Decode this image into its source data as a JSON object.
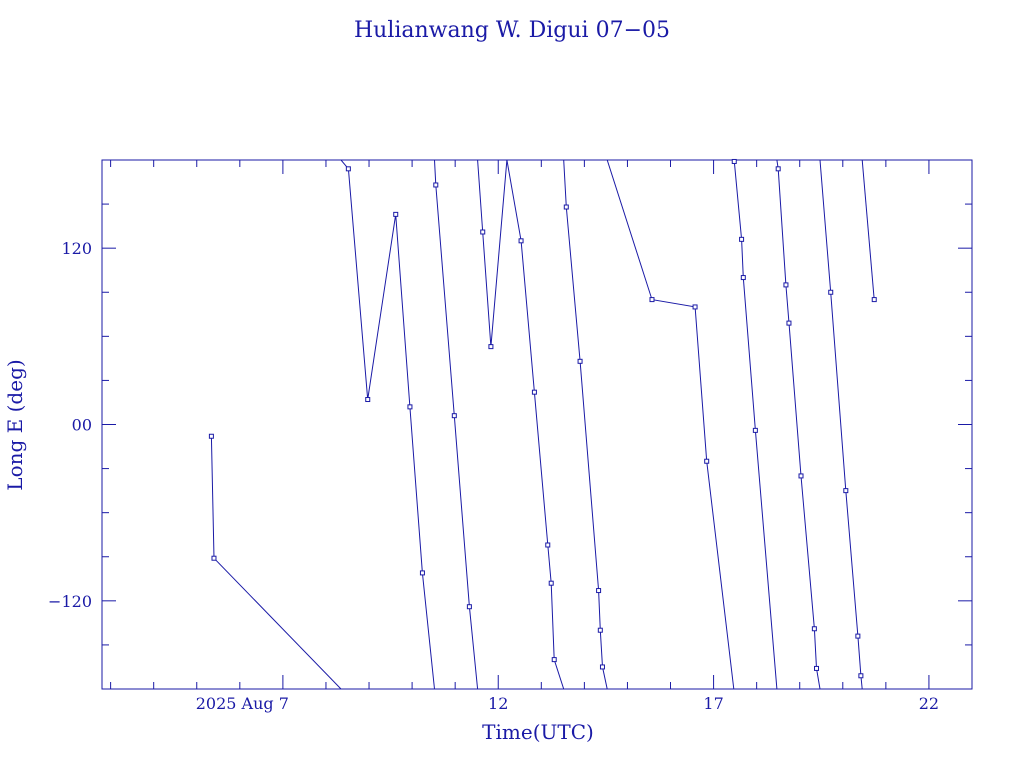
{
  "chart_data": {
    "type": "line",
    "title": "Hulianwang W. Digui 07−05",
    "xlabel": "Time(UTC)",
    "ylabel": "Long E (deg)",
    "x_unit": "days (August 2025)",
    "xlim": [
      2.8,
      23.0
    ],
    "ylim": [
      -180,
      180
    ],
    "x_ticks": [
      {
        "value": 7,
        "label": "2025 Aug  7"
      },
      {
        "value": 12,
        "label": "12"
      },
      {
        "value": 17,
        "label": "17"
      },
      {
        "value": 22,
        "label": "22"
      }
    ],
    "y_ticks": [
      {
        "value": 120,
        "label": "120"
      },
      {
        "value": 0,
        "label": "00"
      },
      {
        "value": -120,
        "label": "−120"
      }
    ],
    "grid": false,
    "colors": {
      "axis": "#1a1aa6",
      "series": "#1a1aa6"
    },
    "series": [
      {
        "marker": "square",
        "points": [
          [
            5.34,
            -8
          ],
          [
            5.4,
            -91
          ],
          [
            8.35,
            180
          ],
          [
            8.52,
            174
          ],
          [
            8.97,
            17
          ],
          [
            9.62,
            143
          ],
          [
            9.95,
            12
          ],
          [
            10.24,
            -101
          ],
          [
            10.52,
            180
          ],
          [
            10.55,
            163
          ],
          [
            10.98,
            6
          ],
          [
            11.33,
            -124
          ],
          [
            11.52,
            180
          ],
          [
            11.64,
            131
          ],
          [
            11.83,
            53
          ],
          [
            12.2,
            180
          ],
          [
            12.53,
            125
          ],
          [
            12.84,
            22
          ],
          [
            13.15,
            -82
          ],
          [
            13.23,
            -108
          ],
          [
            13.3,
            -160
          ],
          [
            13.52,
            180
          ],
          [
            13.58,
            148
          ],
          [
            13.9,
            43
          ],
          [
            14.33,
            -113
          ],
          [
            14.37,
            -140
          ],
          [
            14.42,
            -165
          ],
          [
            14.53,
            180
          ],
          [
            15.57,
            85
          ],
          [
            16.57,
            80
          ],
          [
            16.84,
            -25
          ],
          [
            17.47,
            180
          ],
          [
            17.48,
            179
          ],
          [
            17.65,
            126
          ],
          [
            17.69,
            100
          ],
          [
            17.97,
            -4
          ],
          [
            18.47,
            180
          ],
          [
            18.5,
            174
          ],
          [
            18.68,
            95
          ],
          [
            18.75,
            69
          ],
          [
            19.03,
            -35
          ],
          [
            19.34,
            -139
          ],
          [
            19.39,
            -166
          ],
          [
            19.47,
            180
          ],
          [
            19.72,
            90
          ],
          [
            20.07,
            -45
          ],
          [
            20.35,
            -144
          ],
          [
            20.42,
            -171
          ],
          [
            20.45,
            180
          ],
          [
            20.73,
            85
          ]
        ],
        "segments": [
          [
            [
              5.34,
              -8
            ],
            [
              5.4,
              -91
            ],
            [
              8.35,
              -180
            ]
          ],
          [
            [
              8.35,
              180
            ],
            [
              8.52,
              174
            ],
            [
              8.97,
              17
            ],
            [
              9.62,
              143
            ],
            [
              9.95,
              12
            ],
            [
              10.24,
              -101
            ],
            [
              10.52,
              -180
            ]
          ],
          [
            [
              10.52,
              180
            ],
            [
              10.55,
              163
            ],
            [
              10.98,
              6
            ],
            [
              11.33,
              -124
            ],
            [
              11.52,
              -180
            ]
          ],
          [
            [
              11.52,
              180
            ],
            [
              11.64,
              131
            ],
            [
              11.83,
              53
            ],
            [
              12.2,
              180
            ]
          ],
          [
            [
              12.2,
              180
            ],
            [
              12.53,
              125
            ],
            [
              12.84,
              22
            ],
            [
              13.15,
              -82
            ],
            [
              13.23,
              -108
            ],
            [
              13.3,
              -160
            ],
            [
              13.52,
              -180
            ]
          ],
          [
            [
              13.52,
              180
            ],
            [
              13.58,
              148
            ],
            [
              13.9,
              43
            ],
            [
              14.33,
              -113
            ],
            [
              14.37,
              -140
            ],
            [
              14.42,
              -165
            ],
            [
              14.53,
              -180
            ]
          ],
          [
            [
              14.53,
              180
            ],
            [
              15.57,
              85
            ],
            [
              16.57,
              80
            ],
            [
              16.84,
              -25
            ],
            [
              17.47,
              -180
            ]
          ],
          [
            [
              17.47,
              180
            ],
            [
              17.48,
              179
            ],
            [
              17.65,
              126
            ],
            [
              17.69,
              100
            ],
            [
              17.97,
              -4
            ],
            [
              18.47,
              -180
            ]
          ],
          [
            [
              18.47,
              180
            ],
            [
              18.5,
              174
            ],
            [
              18.68,
              95
            ],
            [
              18.75,
              69
            ],
            [
              19.03,
              -35
            ],
            [
              19.34,
              -139
            ],
            [
              19.39,
              -166
            ],
            [
              19.47,
              -180
            ]
          ],
          [
            [
              19.47,
              180
            ],
            [
              19.72,
              90
            ],
            [
              20.07,
              -45
            ],
            [
              20.35,
              -144
            ],
            [
              20.42,
              -171
            ],
            [
              20.45,
              -180
            ]
          ],
          [
            [
              20.45,
              180
            ],
            [
              20.73,
              85
            ]
          ]
        ]
      }
    ]
  }
}
